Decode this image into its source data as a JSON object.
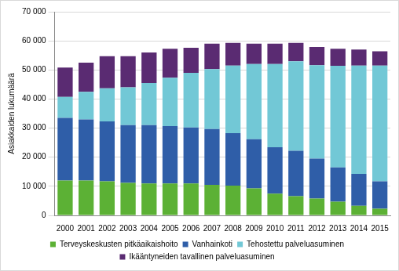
{
  "chart_data": {
    "type": "bar",
    "stacked": true,
    "grid": true,
    "legend": "bottom",
    "y_label": "Asiakkaiden lukumäärä",
    "categories": [
      "2000",
      "2001",
      "2002",
      "2003",
      "2004",
      "2005",
      "2006",
      "2007",
      "2008",
      "2009",
      "2010",
      "2011",
      "2012",
      "2013",
      "2014",
      "2015"
    ],
    "ylim": [
      0,
      70000
    ],
    "yticks": [
      0,
      {
        "value": 10000,
        "label": "10 000"
      },
      {
        "value": 20000,
        "label": "20 000"
      },
      {
        "value": 30000,
        "label": "30 000"
      },
      {
        "value": 40000,
        "label": "40 000"
      },
      {
        "value": 50000,
        "label": "50 000"
      },
      {
        "value": 60000,
        "label": "60 000"
      },
      {
        "value": 70000,
        "label": "70 000"
      }
    ],
    "series": [
      {
        "name": "Terveyskeskusten pitkäaikaishoito",
        "color": "#5cb135",
        "values": [
          12000,
          12000,
          11700,
          11200,
          11000,
          11000,
          11000,
          10500,
          10200,
          9300,
          7500,
          6600,
          5800,
          4700,
          3300,
          2300
        ]
      },
      {
        "name": "Vanhainkoti",
        "color": "#2f5ea8",
        "values": [
          21500,
          21000,
          20600,
          19800,
          20000,
          19700,
          19200,
          19200,
          18100,
          16900,
          15900,
          15600,
          13700,
          11800,
          11000,
          9400
        ]
      },
      {
        "name": "Tehostettu palveluasuminen",
        "color": "#72c8d6",
        "values": [
          7200,
          9500,
          11400,
          13000,
          14500,
          16600,
          18800,
          20600,
          23200,
          25800,
          28600,
          30800,
          32100,
          34900,
          37200,
          39800
        ]
      },
      {
        "name": "Ikääntyneiden tavallinen palveluasuminen",
        "color": "#5a2b72",
        "values": [
          10100,
          10000,
          11000,
          10700,
          10500,
          10000,
          8600,
          8700,
          7800,
          7000,
          7000,
          6300,
          6300,
          5900,
          5500,
          4900
        ]
      }
    ]
  }
}
